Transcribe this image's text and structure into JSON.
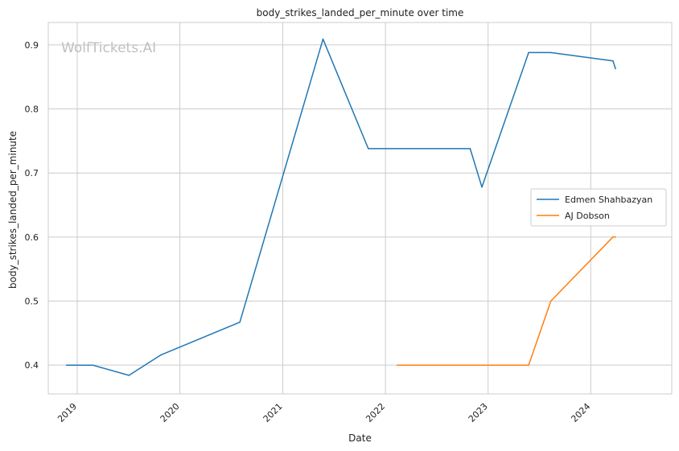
{
  "chart_data": {
    "type": "line",
    "title": "body_strikes_landed_per_minute over time",
    "xlabel": "Date",
    "ylabel": "body_strikes_landed_per_minute",
    "watermark": "WolfTickets.AI",
    "xlim": [
      "2018-09-20",
      "2024-10-15"
    ],
    "ylim": [
      0.355,
      0.935
    ],
    "x_ticks": [
      {
        "date": "2019-01-01",
        "label": "2019"
      },
      {
        "date": "2020-01-01",
        "label": "2020"
      },
      {
        "date": "2021-01-01",
        "label": "2021"
      },
      {
        "date": "2022-01-01",
        "label": "2022"
      },
      {
        "date": "2023-01-01",
        "label": "2023"
      },
      {
        "date": "2024-01-01",
        "label": "2024"
      }
    ],
    "y_ticks": [
      0.4,
      0.5,
      0.6,
      0.7,
      0.8,
      0.9
    ],
    "grid": true,
    "legend_position": "center-right",
    "series": [
      {
        "name": "Edmen Shahbazyan",
        "color": "#1f77b4",
        "points": [
          {
            "x": "2018-11-24",
            "y": 0.4
          },
          {
            "x": "2019-02-25",
            "y": 0.4
          },
          {
            "x": "2019-07-04",
            "y": 0.384
          },
          {
            "x": "2019-10-26",
            "y": 0.416
          },
          {
            "x": "2020-08-01",
            "y": 0.467
          },
          {
            "x": "2021-05-24",
            "y": 0.909
          },
          {
            "x": "2021-11-01",
            "y": 0.738
          },
          {
            "x": "2022-10-29",
            "y": 0.738
          },
          {
            "x": "2022-12-10",
            "y": 0.678
          },
          {
            "x": "2023-05-25",
            "y": 0.888
          },
          {
            "x": "2023-08-12",
            "y": 0.888
          },
          {
            "x": "2024-03-20",
            "y": 0.875
          },
          {
            "x": "2024-03-29",
            "y": 0.863
          }
        ]
      },
      {
        "name": "AJ Dobson",
        "color": "#ff7f0e",
        "points": [
          {
            "x": "2022-02-12",
            "y": 0.4
          },
          {
            "x": "2023-05-25",
            "y": 0.4
          },
          {
            "x": "2023-08-12",
            "y": 0.5
          },
          {
            "x": "2024-03-20",
            "y": 0.6
          },
          {
            "x": "2024-03-29",
            "y": 0.6
          }
        ]
      }
    ]
  }
}
